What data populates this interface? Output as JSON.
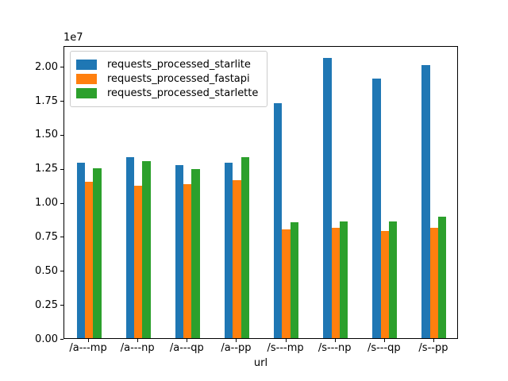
{
  "chart_data": {
    "type": "bar",
    "title": "",
    "xlabel": "url",
    "ylabel": "",
    "y_offset_text": "1e7",
    "categories": [
      "/a---mp",
      "/a---np",
      "/a---qp",
      "/a--pp",
      "/s---mp",
      "/s---np",
      "/s---qp",
      "/s--pp"
    ],
    "series": [
      {
        "name": "requests_processed_starlite",
        "color": "#1f77b4",
        "values": [
          12900000,
          13300000,
          12700000,
          12900000,
          17300000,
          20600000,
          19100000,
          20100000
        ]
      },
      {
        "name": "requests_processed_fastapi",
        "color": "#ff7f0e",
        "values": [
          11500000,
          11200000,
          11300000,
          11600000,
          8000000,
          8100000,
          7900000,
          8100000
        ]
      },
      {
        "name": "requests_processed_starlette",
        "color": "#2ca02c",
        "values": [
          12500000,
          13000000,
          12400000,
          13300000,
          8500000,
          8600000,
          8600000,
          8900000
        ]
      }
    ],
    "ylim": [
      0,
      21530000
    ],
    "yticks": [
      0,
      2500000,
      5000000,
      7500000,
      10000000,
      12500000,
      15000000,
      17500000,
      20000000
    ],
    "ytick_labels": [
      "0.00",
      "0.25",
      "0.50",
      "0.75",
      "1.00",
      "1.25",
      "1.50",
      "1.75",
      "2.00"
    ],
    "legend": {
      "location": "upper left",
      "entries": [
        "requests_processed_starlite",
        "requests_processed_fastapi",
        "requests_processed_starlette"
      ]
    },
    "grid": false,
    "group_fill_ratio": 0.5
  }
}
